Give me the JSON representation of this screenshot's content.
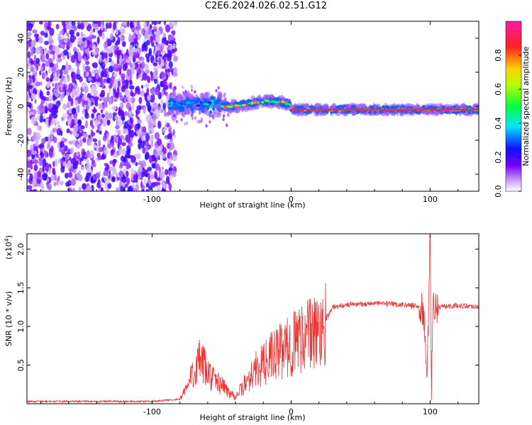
{
  "title": "C2E6.2024.026.02.51.G12",
  "colors": {
    "snr_line": "#ee3333",
    "frame": "#000000"
  },
  "chart_data": [
    {
      "type": "heatmap",
      "title": "C2E6.2024.026.02.51.G12",
      "xlabel": "Height of straight line (km)",
      "ylabel": "Frequency (Hz)",
      "xlim": [
        -190,
        135
      ],
      "ylim": [
        -50,
        50
      ],
      "xticks": [
        "-100",
        "0",
        "100"
      ],
      "yticks": [
        "40",
        "20",
        "0",
        "-20",
        "-40"
      ],
      "colorbar": {
        "label": "Normalized spectral amplitude",
        "range": [
          0,
          1
        ],
        "ticks": [
          "0.0",
          "0.2",
          "0.4",
          "0.6",
          "0.8"
        ],
        "colormap": "hsv rainbow (white-purple-blue-cyan-green-yellow-red-magenta)"
      },
      "regions": [
        {
          "x_range": [
            -190,
            -83
          ],
          "description": "broadband noise, amplitude ~0.05-0.2"
        },
        {
          "x_range": [
            -87,
            -50
          ],
          "center_freq_hz": 2,
          "half_width_hz": 6,
          "amplitude": 0.45
        },
        {
          "x_range": [
            -50,
            0
          ],
          "center_freq_hz": 2,
          "half_width_hz": 3,
          "amplitude": 0.8
        },
        {
          "x_range": [
            0,
            135
          ],
          "center_freq_hz": -2,
          "half_width_hz": 2.5,
          "amplitude": 0.9
        }
      ]
    },
    {
      "type": "line",
      "xlabel": "Height of straight line (km)",
      "ylabel": "SNR (10 * v/v)",
      "y_scale_label": "(x10",
      "y_scale_exponent": "4",
      "xlim": [
        -190,
        135
      ],
      "ylim": [
        0,
        22000
      ],
      "xticks": [
        "-100",
        "0",
        "100"
      ],
      "yticks": [
        "0.5",
        "1.0",
        "1.5",
        "2.0"
      ],
      "series": [
        {
          "x": [
            -190,
            -100,
            -80,
            -75,
            -70,
            -65,
            -60,
            -55,
            -50,
            -45,
            -40,
            -35,
            -30,
            -25,
            -20,
            -15,
            -10,
            -5,
            0,
            5,
            10,
            15,
            20,
            25,
            30,
            40,
            50,
            60,
            70,
            80,
            90,
            95,
            98,
            100,
            101,
            102,
            104,
            110,
            120,
            135
          ],
          "y": [
            300,
            300,
            600,
            2000,
            4500,
            5500,
            4000,
            3000,
            2500,
            1500,
            1000,
            2000,
            3500,
            4500,
            5000,
            6000,
            6500,
            7000,
            7500,
            8500,
            9000,
            9000,
            9500,
            11000,
            12500,
            12800,
            12900,
            13000,
            12900,
            12800,
            12700,
            12000,
            4000,
            21500,
            2000,
            13000,
            12500,
            12600,
            12700,
            12600
          ]
        }
      ]
    }
  ]
}
